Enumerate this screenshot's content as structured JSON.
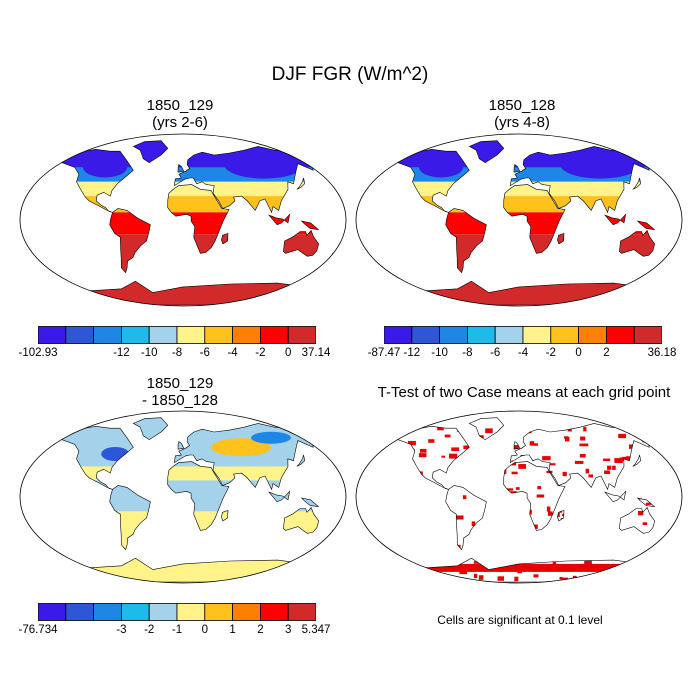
{
  "main_title": "DJF FGR (W/m^2)",
  "colors": {
    "scale": [
      "#3a1ae6",
      "#2e56d8",
      "#1e87e6",
      "#1cbbea",
      "#a4d2ea",
      "#fff38a",
      "#ffc21c",
      "#ff8000",
      "#ff0000",
      "#d22a2a"
    ],
    "land_outline": "#000000",
    "ttest_cells": "#e60000"
  },
  "panels": [
    {
      "title_line1": "1850_129",
      "title_line2": "(yrs 2-6)",
      "map_style": "field",
      "colorbar_labels": [
        "-102.93",
        "-12",
        "-10",
        "-8",
        "-6",
        "-4",
        "-2",
        "0",
        "37.14"
      ]
    },
    {
      "title_line1": "1850_128",
      "title_line2": "(yrs 4-8)",
      "map_style": "field",
      "colorbar_labels": [
        "-87.47",
        "-12",
        "-10",
        "-8",
        "-6",
        "-4",
        "-2",
        "0",
        "2",
        "36.18"
      ]
    },
    {
      "title_line1": "1850_129",
      "title_line2": "- 1850_128",
      "map_style": "difference",
      "colorbar_labels": [
        "-76.734",
        "-3",
        "-2",
        "-1",
        "0",
        "1",
        "2",
        "3",
        "5.347"
      ]
    },
    {
      "title_line1": "T-Test of two Case means at each grid point",
      "title_line2": "",
      "map_style": "ttest",
      "note": "Cells are significant at 0.1 level"
    }
  ]
}
